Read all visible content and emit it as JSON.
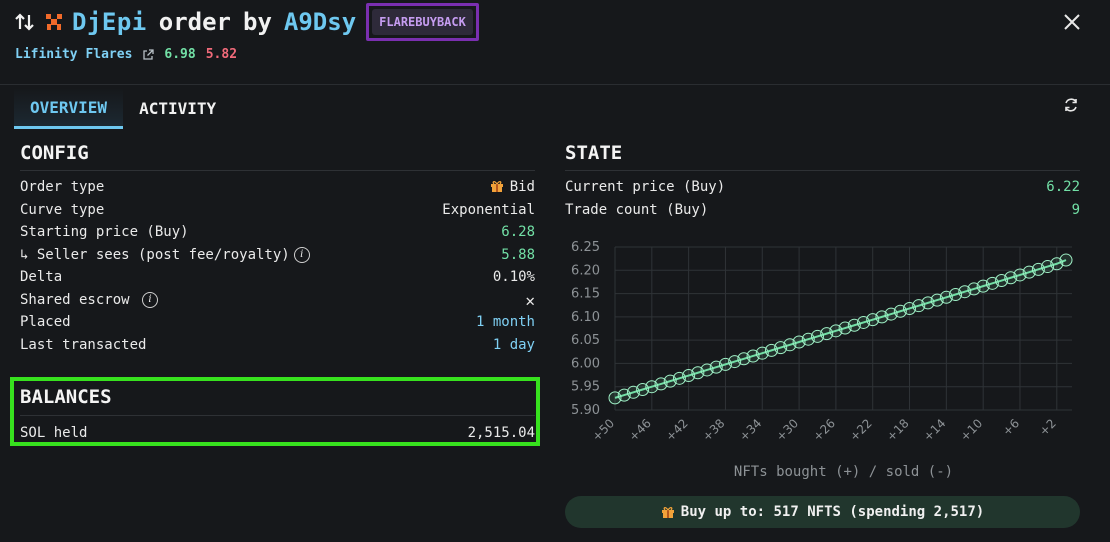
{
  "header": {
    "name": "DjEpi",
    "order_word": "order",
    "by_word": "by",
    "owner": "A9Dsy",
    "badge": "FLAREBUYBACK",
    "collection": "Lifinity Flares",
    "price_high": "6.98",
    "price_low": "5.82"
  },
  "tabs": [
    {
      "label": "OVERVIEW",
      "active": true
    },
    {
      "label": "ACTIVITY",
      "active": false
    }
  ],
  "config": {
    "title": "CONFIG",
    "rows": [
      {
        "label": "Order type",
        "value": "Bid"
      },
      {
        "label": "Curve type",
        "value": "Exponential"
      },
      {
        "label": "Starting price (Buy)",
        "value": "6.28"
      },
      {
        "label": "↳ Seller sees (post fee/royalty)",
        "value": "5.88"
      },
      {
        "label": "Delta",
        "value": "0.10%"
      },
      {
        "label": "Shared escrow",
        "value": "✕"
      },
      {
        "label": "Placed",
        "value": "1 month"
      },
      {
        "label": "Last transacted",
        "value": "1 day"
      }
    ]
  },
  "balances": {
    "title": "BALANCES",
    "rows": [
      {
        "label": "SOL held",
        "value": "2,515.04"
      }
    ]
  },
  "state": {
    "title": "STATE",
    "rows": [
      {
        "label": "Current price (Buy)",
        "value": "6.22"
      },
      {
        "label": "Trade count (Buy)",
        "value": "9"
      }
    ]
  },
  "buy_button": {
    "label": "Buy up to: 517 NFTS (spending 2,517)"
  },
  "colors": {
    "accent": "#6ec8f0",
    "green": "#72e0a6",
    "red": "#f06a7a",
    "badge_border": "#7a2fb0",
    "highlight_border": "#37e11e"
  },
  "chart_data": {
    "type": "scatter",
    "xlabel": "NFTs bought (+) / sold (-)",
    "ylabel": "",
    "title": "",
    "ylim": [
      5.9,
      6.25
    ],
    "y_ticks": [
      "5.90",
      "5.95",
      "6.00",
      "6.05",
      "6.10",
      "6.15",
      "6.20",
      "6.25"
    ],
    "x_ticks": [
      "+50",
      "+46",
      "+42",
      "+38",
      "+34",
      "+30",
      "+26",
      "+22",
      "+18",
      "+14",
      "+10",
      "+6",
      "+2"
    ],
    "x_reversed": true,
    "x": [
      50,
      49,
      48,
      47,
      46,
      45,
      44,
      43,
      42,
      41,
      40,
      39,
      38,
      37,
      36,
      35,
      34,
      33,
      32,
      31,
      30,
      29,
      28,
      27,
      26,
      25,
      24,
      23,
      22,
      21,
      20,
      19,
      18,
      17,
      16,
      15,
      14,
      13,
      12,
      11,
      10,
      9,
      8,
      7,
      6,
      5,
      4,
      3,
      2,
      1
    ],
    "y": [
      5.926,
      5.932,
      5.938,
      5.944,
      5.95,
      5.956,
      5.962,
      5.968,
      5.974,
      5.98,
      5.986,
      5.992,
      5.998,
      6.004,
      6.01,
      6.016,
      6.022,
      6.028,
      6.034,
      6.04,
      6.046,
      6.052,
      6.058,
      6.064,
      6.07,
      6.076,
      6.082,
      6.088,
      6.094,
      6.1,
      6.106,
      6.112,
      6.118,
      6.124,
      6.13,
      6.136,
      6.142,
      6.148,
      6.154,
      6.16,
      6.166,
      6.172,
      6.178,
      6.184,
      6.19,
      6.196,
      6.202,
      6.208,
      6.214,
      6.222
    ],
    "grid": true
  }
}
